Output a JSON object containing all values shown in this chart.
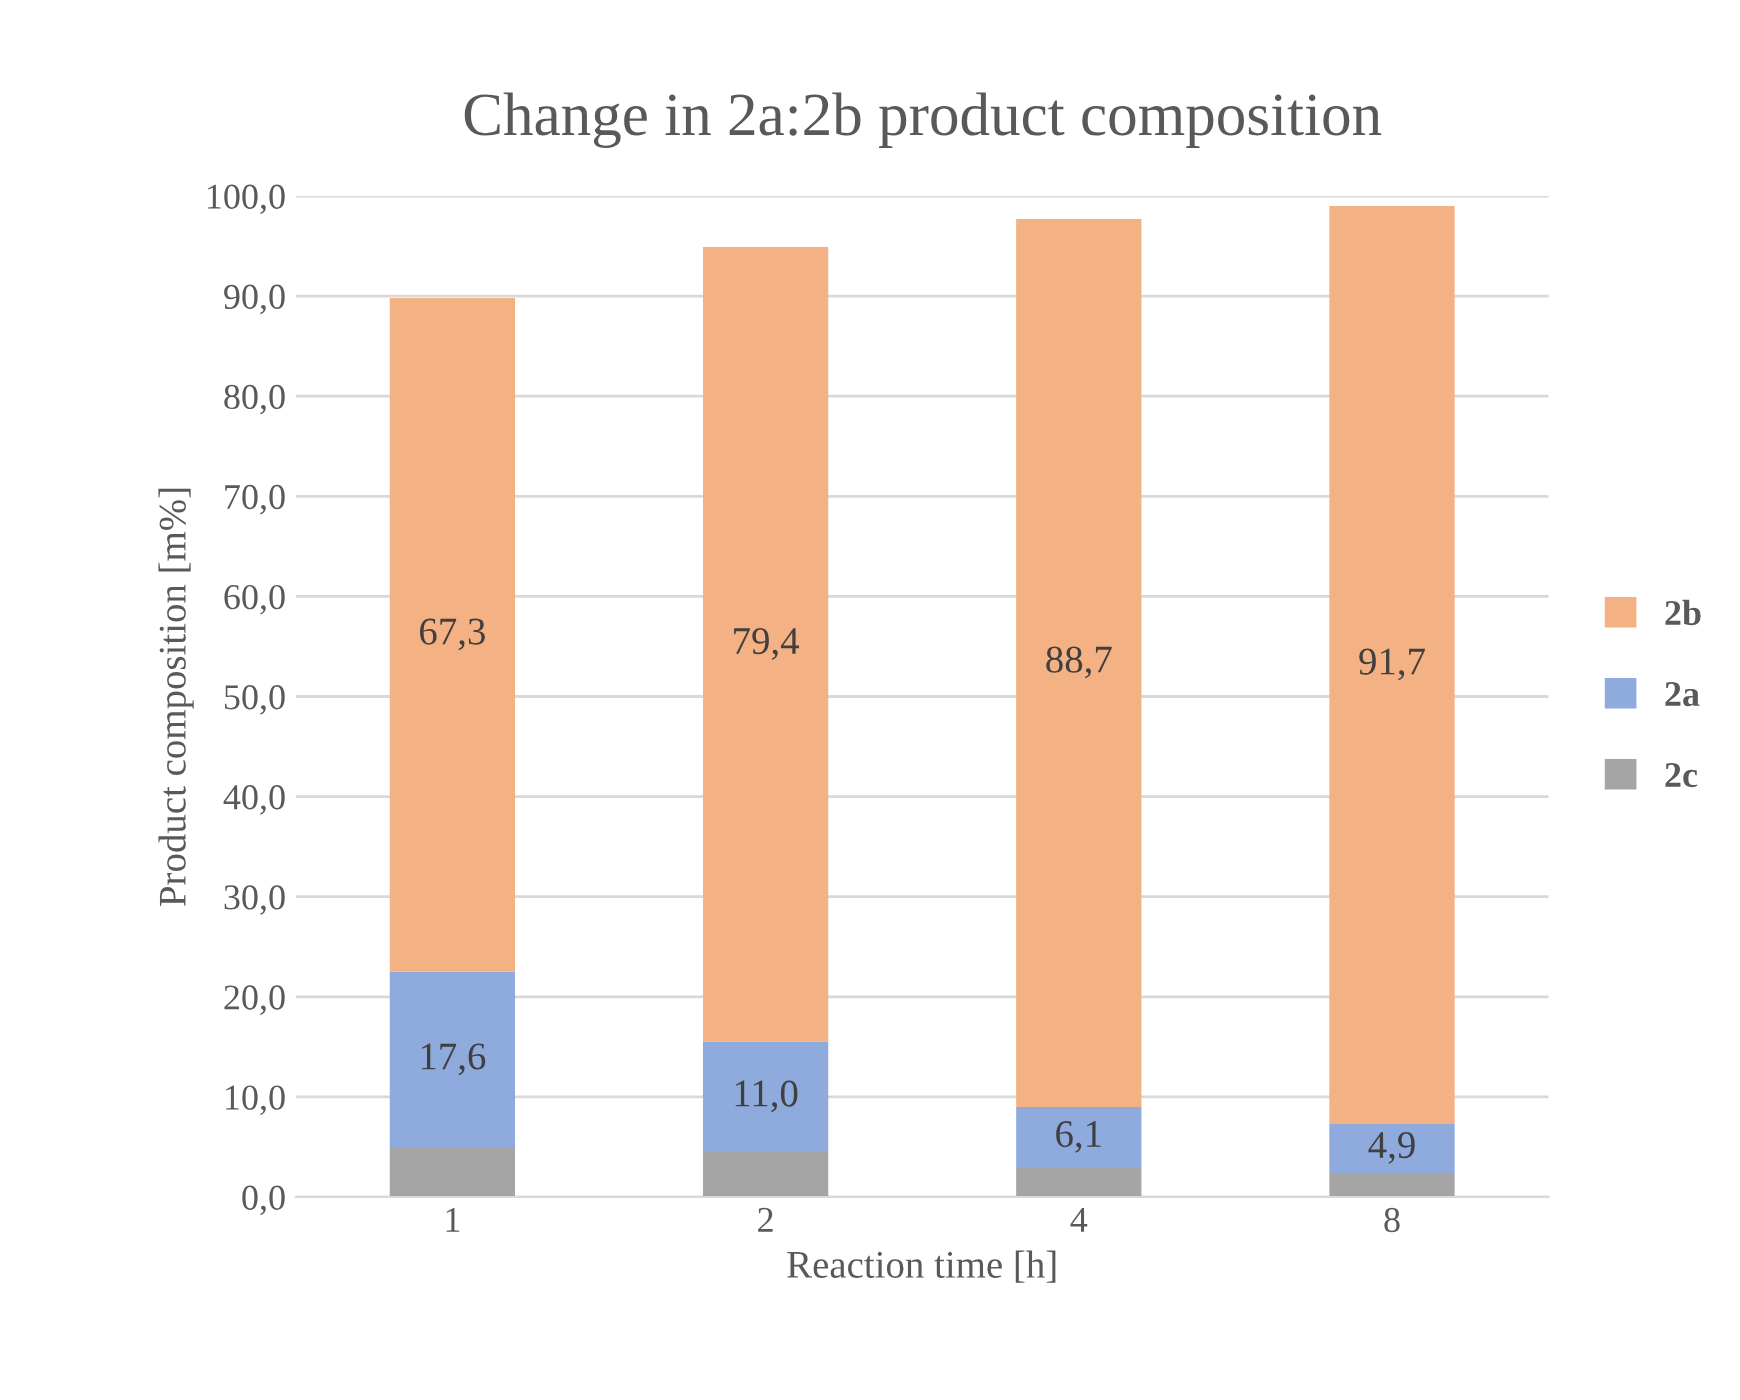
{
  "chart_data": {
    "type": "bar",
    "stacked": true,
    "title": "Change in 2a:2b product composition",
    "xlabel": "Reaction time [h]",
    "ylabel": "Product composition [m%]",
    "categories": [
      "1",
      "2",
      "4",
      "8"
    ],
    "series": [
      {
        "name": "2c",
        "color": "#a5a5a5",
        "values": [
          4.9,
          4.5,
          2.9,
          2.4
        ]
      },
      {
        "name": "2a",
        "color": "#8faadc",
        "values": [
          17.6,
          11.0,
          6.1,
          4.9
        ],
        "value_labels": [
          "17,6",
          "11,0",
          "6,1",
          "4,9"
        ]
      },
      {
        "name": "2b",
        "color": "#f4b183",
        "values": [
          67.3,
          79.4,
          88.7,
          91.7
        ],
        "value_labels": [
          "67,3",
          "79,4",
          "88,7",
          "91,7"
        ]
      }
    ],
    "ylim": [
      0,
      100
    ],
    "yticks": [
      {
        "value": 0,
        "label": "0,0"
      },
      {
        "value": 10,
        "label": "10,0"
      },
      {
        "value": 20,
        "label": "20,0"
      },
      {
        "value": 30,
        "label": "30,0"
      },
      {
        "value": 40,
        "label": "40,0"
      },
      {
        "value": 50,
        "label": "50,0"
      },
      {
        "value": 60,
        "label": "60,0"
      },
      {
        "value": 70,
        "label": "70,0"
      },
      {
        "value": 80,
        "label": "80,0"
      },
      {
        "value": 90,
        "label": "90,0"
      },
      {
        "value": 100,
        "label": "100,0"
      }
    ],
    "grid": "y",
    "legend": "right"
  }
}
